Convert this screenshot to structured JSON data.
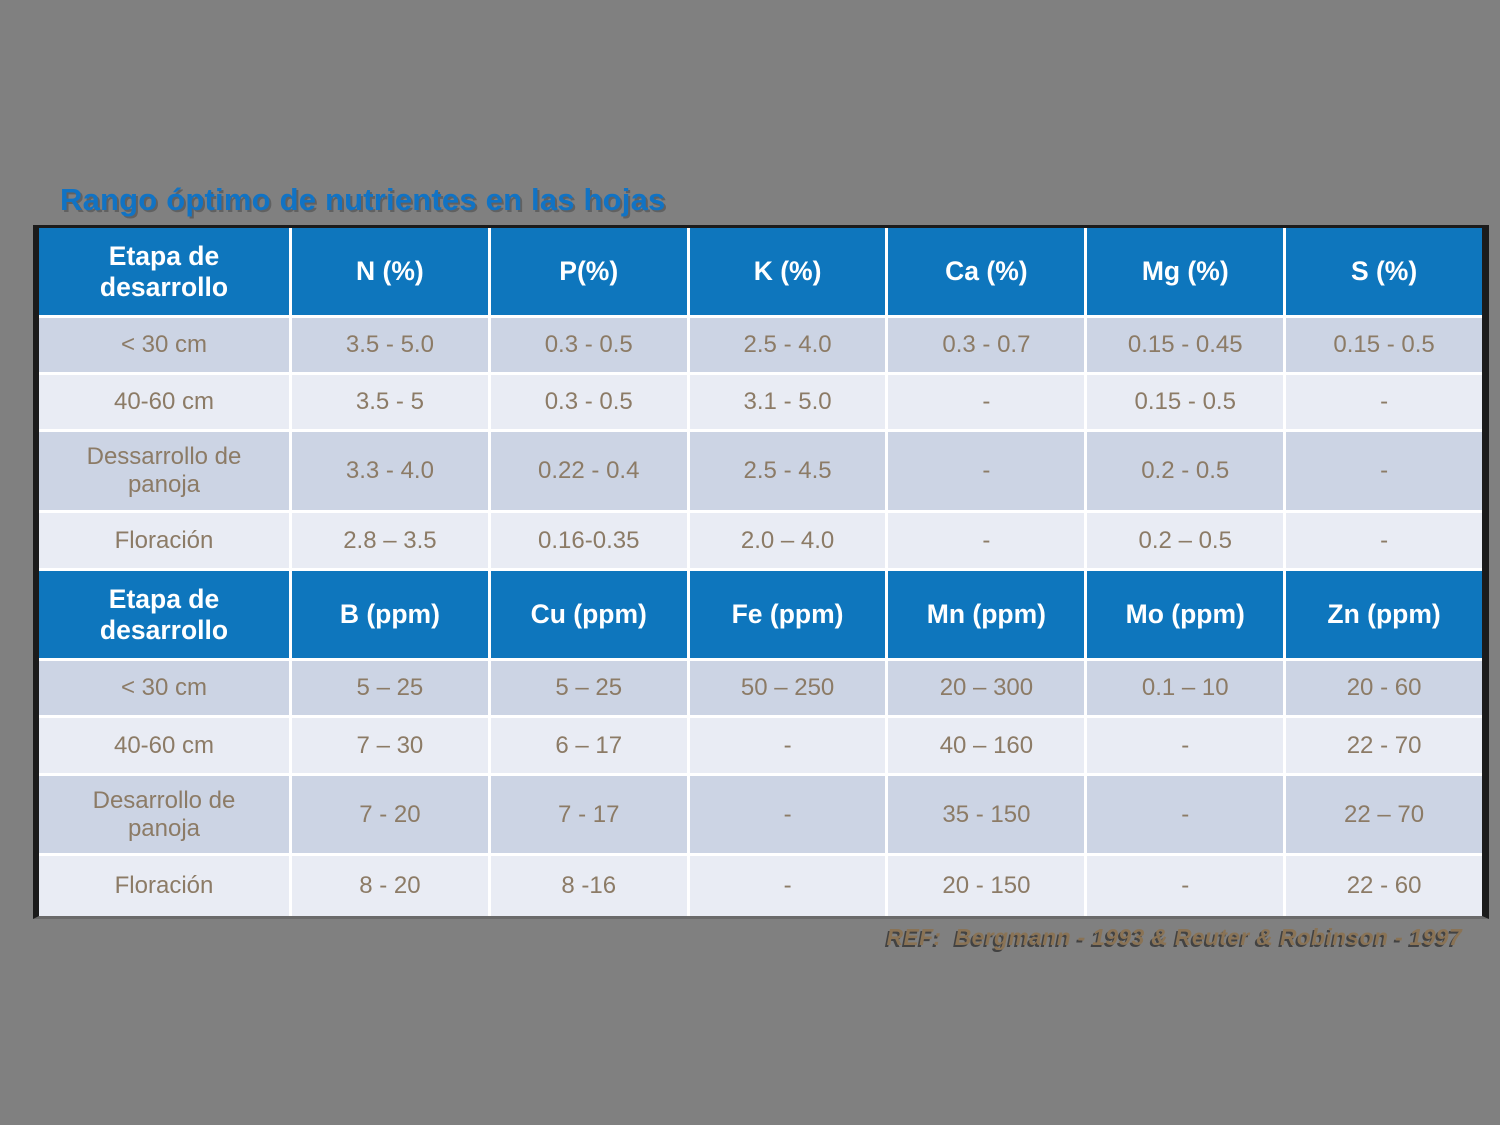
{
  "page": {
    "background_color": "#808080"
  },
  "title": {
    "text": "Rango óptimo de nutrientes en las hojas",
    "color": "#1173c4"
  },
  "table": {
    "header_color": "#0e76bd",
    "band_dark_color": "#ccd4e4",
    "band_light_color": "#e9ecf4",
    "cell_text_color": "#8c7b66",
    "sections": [
      {
        "headers": [
          "Etapa de desarrollo",
          "N (%)",
          "P(%)",
          "K (%)",
          "Ca (%)",
          "Mg (%)",
          "S (%)"
        ],
        "rows": [
          [
            "< 30 cm",
            "3.5 - 5.0",
            "0.3 - 0.5",
            "2.5 - 4.0",
            "0.3 - 0.7",
            "0.15 - 0.45",
            "0.15 - 0.5"
          ],
          [
            "40-60 cm",
            "3.5 - 5",
            "0.3 - 0.5",
            "3.1 - 5.0",
            "-",
            "0.15 - 0.5",
            "-"
          ],
          [
            "Dessarrollo de panoja",
            "3.3 - 4.0",
            "0.22 - 0.4",
            "2.5 - 4.5",
            "-",
            "0.2 - 0.5",
            "-"
          ],
          [
            "Floración",
            "2.8 – 3.5",
            "0.16-0.35",
            "2.0 – 4.0",
            "-",
            "0.2 – 0.5",
            "-"
          ]
        ]
      },
      {
        "headers": [
          "Etapa de desarrollo",
          "B (ppm)",
          "Cu (ppm)",
          "Fe (ppm)",
          "Mn (ppm)",
          "Mo (ppm)",
          "Zn (ppm)"
        ],
        "rows": [
          [
            "< 30 cm",
            "5 – 25",
            "5 – 25",
            "50 – 250",
            "20 – 300",
            "0.1 – 10",
            "20 - 60"
          ],
          [
            "40-60 cm",
            "7 – 30",
            "6 – 17",
            "-",
            "40 – 160",
            "-",
            "22 - 70"
          ],
          [
            "Desarrollo de panoja",
            "7 - 20",
            "7 - 17",
            "-",
            "35 - 150",
            "-",
            "22 – 70"
          ],
          [
            "Floración",
            "8 - 20",
            "8 -16",
            "-",
            "20 - 150",
            "-",
            "22 - 60"
          ]
        ]
      }
    ]
  },
  "footer": {
    "reference": "REF:  Bergmann - 1993 & Reuter & Robinson - 1997",
    "color": "#8a7355"
  }
}
